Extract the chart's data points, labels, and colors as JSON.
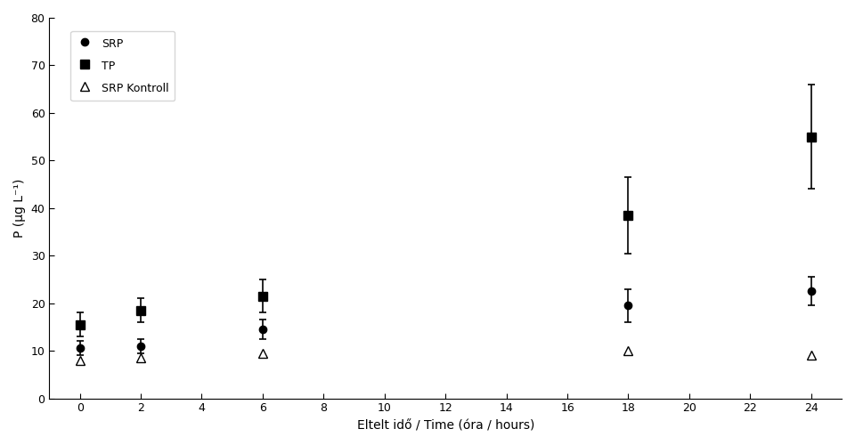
{
  "xlabel": "Eltelt idő / Time (óra / hours)",
  "ylabel": "P (µg L⁻¹)",
  "xlim": [
    -1,
    25
  ],
  "ylim": [
    0,
    80
  ],
  "xticks": [
    0,
    2,
    4,
    6,
    8,
    10,
    12,
    14,
    16,
    18,
    20,
    22,
    24
  ],
  "yticks": [
    0,
    10,
    20,
    30,
    40,
    50,
    60,
    70,
    80
  ],
  "SRP": {
    "x": [
      0,
      2,
      6,
      18,
      24
    ],
    "y": [
      10.5,
      11.0,
      14.5,
      19.5,
      22.5
    ],
    "yerr": [
      1.5,
      1.5,
      2.0,
      3.5,
      3.0
    ]
  },
  "TP": {
    "x": [
      0,
      2,
      6,
      18,
      24
    ],
    "y": [
      15.5,
      18.5,
      21.5,
      38.5,
      55.0
    ],
    "yerr": [
      2.5,
      2.5,
      3.5,
      8.0,
      11.0
    ]
  },
  "SRP_Kontroll": {
    "x": [
      0,
      2,
      6,
      18,
      24
    ],
    "y": [
      8.0,
      8.5,
      9.5,
      10.0,
      9.0
    ],
    "yerr": [
      0,
      0,
      0,
      0,
      0
    ]
  },
  "background_color": "#ffffff",
  "line_color": "#000000",
  "legend_labels": [
    "SRP",
    "TP",
    "SRP Kontroll"
  ]
}
